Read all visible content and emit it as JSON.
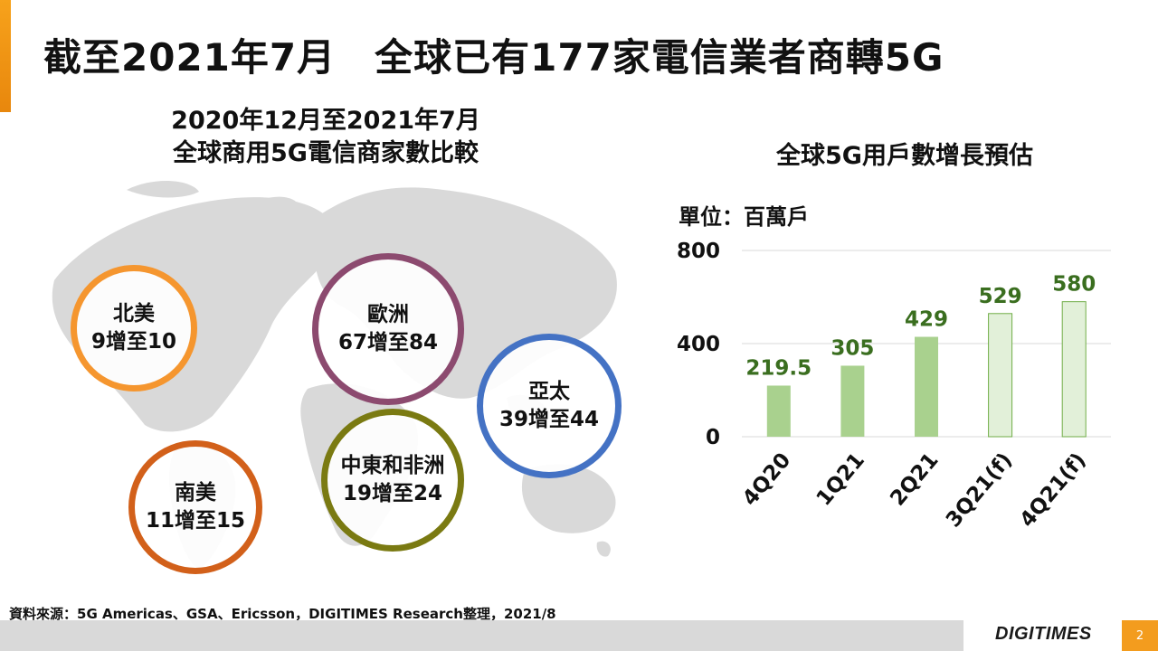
{
  "slide": {
    "title": "截至2021年7月　全球已有177家電信業者商轉5G",
    "page_number": "2"
  },
  "map_section": {
    "title_line1": "2020年12月至2021年7月",
    "title_line2": "全球商用5G電信商家數比較",
    "regions": [
      {
        "name": "北美",
        "value": "9增至10",
        "color": "#f5962f"
      },
      {
        "name": "歐洲",
        "value": "67增至84",
        "color": "#8c4a6f"
      },
      {
        "name": "亞太",
        "value": "39增至44",
        "color": "#4472c4"
      },
      {
        "name": "南美",
        "value": "11增至15",
        "color": "#d2601a"
      },
      {
        "name": "中東和非洲",
        "value": "19增至24",
        "color": "#7a7a12"
      }
    ]
  },
  "chart_section": {
    "title": "全球5G用戶數增長預估",
    "unit": "單位：百萬戶"
  },
  "chart_data": {
    "type": "bar",
    "title": "全球5G用戶數增長預估",
    "ylabel": "單位：百萬戶",
    "xlabel": "",
    "categories": [
      "4Q20",
      "1Q21",
      "2Q21",
      "3Q21(f)",
      "4Q21(f)"
    ],
    "values": [
      219.5,
      305,
      429,
      529,
      580
    ],
    "value_labels": [
      "219.5",
      "305",
      "429",
      "529",
      "580"
    ],
    "forecast": [
      false,
      false,
      false,
      true,
      true
    ],
    "ylim": [
      0,
      800
    ],
    "yticks": [
      0,
      400,
      800
    ],
    "grid": true,
    "colors": {
      "actual": "#a9d18e",
      "forecast": "#e2f0d9",
      "forecast_border": "#70ad47",
      "label": "#3a6e1f",
      "grid": "#d9d9d9"
    }
  },
  "footer": {
    "source": "資料來源：5G Americas、GSA、Ericsson，DIGITIMES Research整理，2021/8",
    "brand": "DIGITIMES"
  }
}
